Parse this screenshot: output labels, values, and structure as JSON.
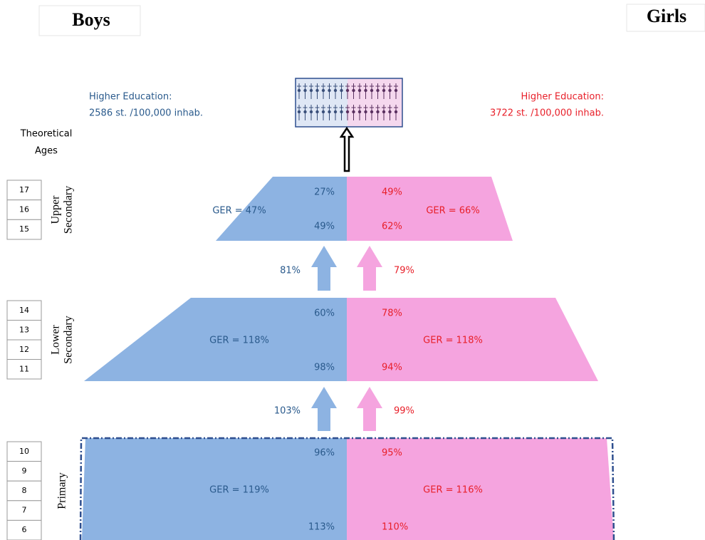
{
  "header": {
    "boys": "Boys",
    "girls": "Girls"
  },
  "higher_education": {
    "boys": {
      "label": "Higher Education:",
      "value": "2586 st. /100,000 inhab."
    },
    "girls": {
      "label": "Higher Education:",
      "value": "3722 st. /100,000 inhab."
    }
  },
  "ages_title": [
    "Theoretical",
    "Ages"
  ],
  "levels": [
    {
      "name": [
        "Upper",
        "Secondary"
      ],
      "ages": [
        "17",
        "16",
        "15"
      ],
      "boys": {
        "top": "27%",
        "bottom": "49%",
        "ger": "GER = 47%"
      },
      "girls": {
        "top": "49%",
        "bottom": "62%",
        "ger": "GER = 66%"
      }
    },
    {
      "name": [
        "Lower",
        "Secondary"
      ],
      "ages": [
        "14",
        "13",
        "12",
        "11"
      ],
      "boys": {
        "top": "60%",
        "bottom": "98%",
        "ger": "GER = 118%"
      },
      "girls": {
        "top": "78%",
        "bottom": "94%",
        "ger": "GER = 118%"
      }
    },
    {
      "name": [
        "Primary"
      ],
      "ages": [
        "10",
        "9",
        "8",
        "7",
        "6"
      ],
      "boys": {
        "top": "96%",
        "bottom": "113%",
        "ger": "GER = 119%"
      },
      "girls": {
        "top": "95%",
        "bottom": "110%",
        "ger": "GER = 116%"
      }
    }
  ],
  "transitions": [
    {
      "boys": "81%",
      "girls": "79%"
    },
    {
      "boys": "103%",
      "girls": "99%"
    }
  ]
}
